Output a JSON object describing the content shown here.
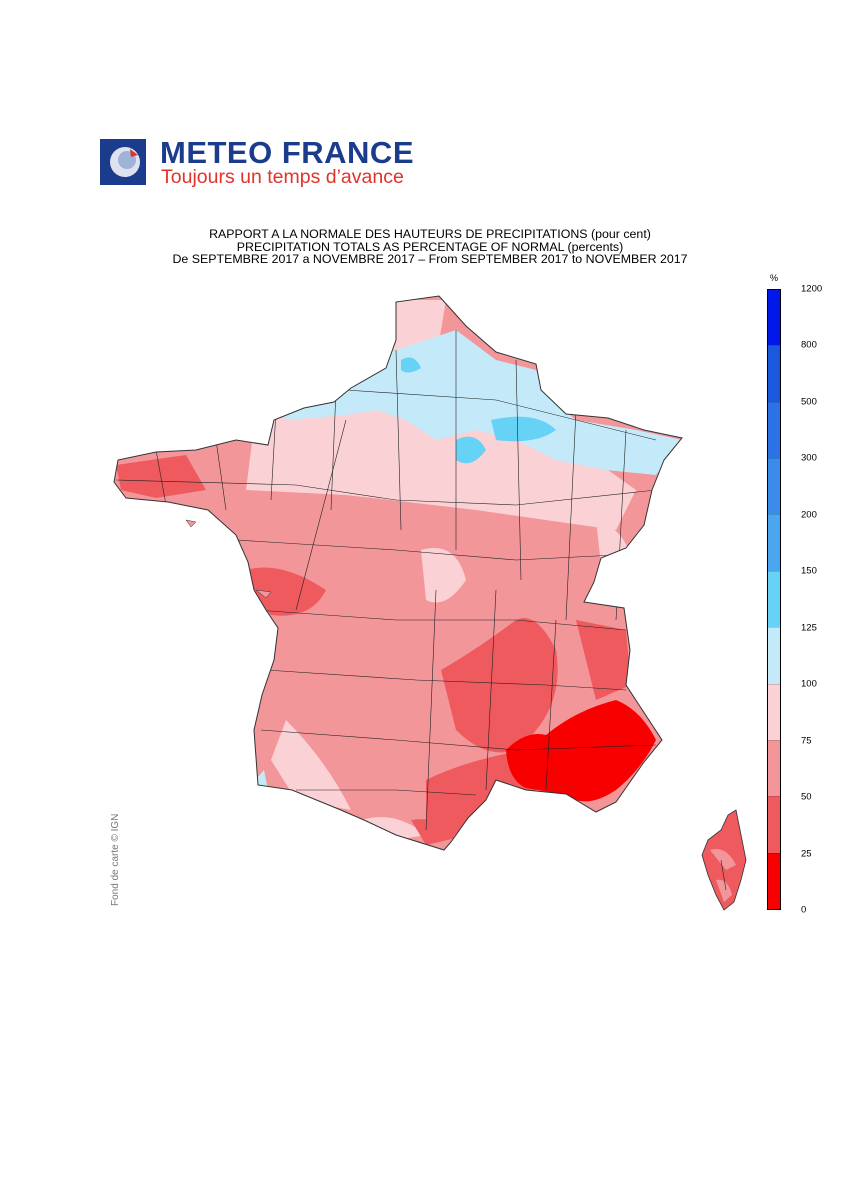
{
  "brand": {
    "name": "METEO FRANCE",
    "tagline": "Toujours un temps d’avance",
    "colors": {
      "name": "#1b3c8c",
      "tagline": "#e1322c"
    }
  },
  "titles": {
    "line1": "RAPPORT A LA NORMALE DES HAUTEURS DE PRECIPITATIONS (pour cent)",
    "line2": "PRECIPITATION TOTALS AS PERCENTAGE OF NORMAL (percents)",
    "line3": "De SEPTEMBRE 2017 a NOVEMBRE 2017 – From SEPTEMBER 2017 to NOVEMBER 2017"
  },
  "credit": "Fond de carte © IGN",
  "legend": {
    "unit": "%",
    "bins_top_to_bottom": [
      {
        "range": "800-1200",
        "color": "#0018e8"
      },
      {
        "range": "500-800",
        "color": "#1c58dc"
      },
      {
        "range": "300-500",
        "color": "#2a72e6"
      },
      {
        "range": "200-300",
        "color": "#3a8cec"
      },
      {
        "range": "150-200",
        "color": "#4aa6ee"
      },
      {
        "range": "125-150",
        "color": "#66d2f6"
      },
      {
        "range": "100-125",
        "color": "#c4eafa"
      },
      {
        "range": "75-100",
        "color": "#fad1d4"
      },
      {
        "range": "50-75",
        "color": "#f3969a"
      },
      {
        "range": "25-50",
        "color": "#ee5a5e"
      },
      {
        "range": "0-25",
        "color": "#f80000"
      }
    ],
    "tick_labels_top_to_bottom": [
      "1200",
      "800",
      "500",
      "300",
      "200",
      "150",
      "125",
      "100",
      "75",
      "50",
      "25",
      "0"
    ]
  },
  "map": {
    "subject": "France precipitation ratio to normal, Sep–Nov 2017",
    "regions": [
      {
        "name": "north-east",
        "class": "100-125"
      },
      {
        "name": "north",
        "class": "100-125"
      },
      {
        "name": "brittany",
        "class": "50-75"
      },
      {
        "name": "west-centre",
        "class": "50-75"
      },
      {
        "name": "vendee-coast",
        "class": "25-50"
      },
      {
        "name": "massif-central-east",
        "class": "25-50"
      },
      {
        "name": "provence",
        "class": "0-25"
      },
      {
        "name": "languedoc",
        "class": "25-50"
      },
      {
        "name": "south-west",
        "class": "50-75"
      },
      {
        "name": "corsica",
        "class": "25-50"
      }
    ]
  }
}
